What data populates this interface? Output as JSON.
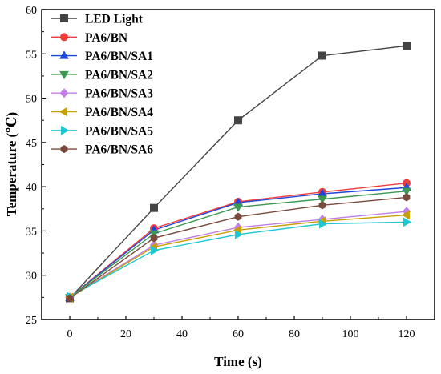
{
  "chart_data": {
    "type": "line",
    "xlabel": "Time (s)",
    "ylabel": "Temperature (℃)",
    "xlim": [
      -10,
      130
    ],
    "ylim": [
      25,
      60
    ],
    "xticks": [
      0,
      20,
      40,
      60,
      80,
      100,
      120
    ],
    "yticks": [
      25,
      30,
      35,
      40,
      45,
      50,
      55,
      60
    ],
    "xtick_labels": [
      "0",
      "20",
      "40",
      "60",
      "80",
      "100",
      "120"
    ],
    "ytick_labels": [
      "25",
      "30",
      "35",
      "40",
      "45",
      "50",
      "55",
      "60"
    ],
    "x": [
      0,
      30,
      60,
      90,
      120
    ],
    "grid": false,
    "legend_position": "top-left",
    "series": [
      {
        "name": "LED Light",
        "values": [
          27.4,
          37.6,
          47.5,
          54.8,
          55.9
        ],
        "color": "#444444",
        "marker": "square"
      },
      {
        "name": "PA6/BN",
        "values": [
          27.5,
          35.3,
          38.3,
          39.4,
          40.4
        ],
        "color": "#f03c3c",
        "marker": "circle"
      },
      {
        "name": "PA6/BN/SA1",
        "values": [
          27.5,
          35.1,
          38.2,
          39.2,
          39.9
        ],
        "color": "#1e46dc",
        "marker": "triangle-up"
      },
      {
        "name": "PA6/BN/SA2",
        "values": [
          27.5,
          34.7,
          37.7,
          38.6,
          39.5
        ],
        "color": "#3c9a50",
        "marker": "triangle-down"
      },
      {
        "name": "PA6/BN/SA3",
        "values": [
          27.5,
          33.4,
          35.4,
          36.3,
          37.2
        ],
        "color": "#c07ee6",
        "marker": "diamond"
      },
      {
        "name": "PA6/BN/SA4",
        "values": [
          27.5,
          33.2,
          35.1,
          36.1,
          36.8
        ],
        "color": "#c8a000",
        "marker": "triangle-left"
      },
      {
        "name": "PA6/BN/SA5",
        "values": [
          27.6,
          32.8,
          34.6,
          35.8,
          36.0
        ],
        "color": "#1ec8d2",
        "marker": "triangle-right"
      },
      {
        "name": "PA6/BN/SA6",
        "values": [
          27.4,
          34.2,
          36.6,
          37.9,
          38.8
        ],
        "color": "#7a4a3c",
        "marker": "hexagon"
      }
    ]
  }
}
